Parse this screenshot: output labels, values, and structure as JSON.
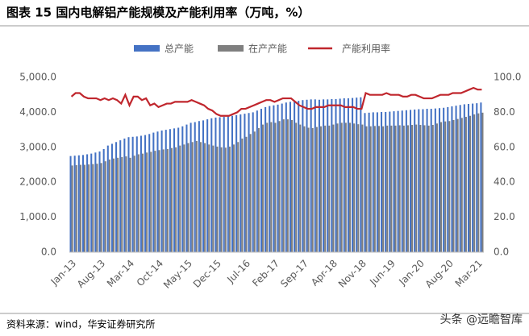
{
  "chart_data": {
    "type": "bar",
    "title": "图表 15 国内电解铝产能规模及产能利用率（万吨，%）",
    "source": "资料来源：wind，华安证券研究所",
    "watermark": "头条 @远瞻智库",
    "categories": [
      "Jan-13",
      null,
      null,
      null,
      null,
      null,
      null,
      "Aug-13",
      null,
      null,
      null,
      null,
      null,
      null,
      "Mar-14",
      null,
      null,
      null,
      null,
      null,
      null,
      "Oct-14",
      null,
      null,
      null,
      null,
      null,
      null,
      "May-15",
      null,
      null,
      null,
      null,
      null,
      null,
      "Dec-15",
      null,
      null,
      null,
      null,
      null,
      null,
      "Jul-16",
      null,
      null,
      null,
      null,
      null,
      null,
      "Feb-17",
      null,
      null,
      null,
      null,
      null,
      null,
      "Sep-17",
      null,
      null,
      null,
      null,
      null,
      null,
      "Apr-18",
      null,
      null,
      null,
      null,
      null,
      null,
      "Nov-18",
      null,
      null,
      null,
      null,
      null,
      null,
      "Jun-19",
      null,
      null,
      null,
      null,
      null,
      null,
      "Jan-20",
      null,
      null,
      null,
      null,
      null,
      null,
      "Aug-20",
      null,
      null,
      null,
      null,
      null,
      null,
      "Mar-21",
      null
    ],
    "series": [
      {
        "name": "总产能",
        "type": "bar",
        "color": "#4472c4",
        "values": [
          2750,
          2760,
          2770,
          2780,
          2800,
          2820,
          2850,
          2880,
          2950,
          3050,
          3100,
          3150,
          3200,
          3250,
          3290,
          3300,
          3310,
          3330,
          3350,
          3380,
          3420,
          3450,
          3480,
          3500,
          3520,
          3540,
          3560,
          3600,
          3650,
          3700,
          3720,
          3750,
          3770,
          3800,
          3830,
          3850,
          3860,
          3870,
          3880,
          3900,
          3920,
          3940,
          3960,
          3980,
          4000,
          4050,
          4100,
          4150,
          4180,
          4200,
          4220,
          4250,
          4280,
          4300,
          4320,
          4330,
          4350,
          4360,
          4370,
          4370,
          4360,
          4370,
          4370,
          4380,
          4380,
          4390,
          4400,
          4400,
          4410,
          4420,
          4430,
          3980,
          3990,
          4000,
          4000,
          4010,
          4010,
          4020,
          4030,
          4040,
          4050,
          4060,
          4070,
          4080,
          4090,
          4090,
          4100,
          4100,
          4110,
          4120,
          4130,
          4150,
          4170,
          4190,
          4210,
          4230,
          4240,
          4250,
          4260,
          4280
        ]
      },
      {
        "name": "在产产能",
        "type": "bar",
        "color": "#7f7f7f",
        "values": [
          2480,
          2490,
          2500,
          2500,
          2510,
          2520,
          2530,
          2550,
          2600,
          2650,
          2680,
          2700,
          2720,
          2740,
          2700,
          2760,
          2800,
          2820,
          2850,
          2870,
          2900,
          2920,
          2940,
          2950,
          2980,
          3000,
          3050,
          3080,
          3120,
          3150,
          3180,
          3150,
          3120,
          3080,
          3050,
          3020,
          3000,
          2990,
          3020,
          3080,
          3150,
          3250,
          3300,
          3380,
          3450,
          3550,
          3650,
          3700,
          3720,
          3700,
          3750,
          3800,
          3800,
          3780,
          3700,
          3650,
          3600,
          3560,
          3550,
          3580,
          3600,
          3620,
          3620,
          3650,
          3680,
          3700,
          3700,
          3700,
          3680,
          3660,
          3650,
          3600,
          3600,
          3610,
          3610,
          3600,
          3620,
          3620,
          3620,
          3630,
          3620,
          3630,
          3640,
          3650,
          3640,
          3630,
          3620,
          3640,
          3680,
          3720,
          3740,
          3750,
          3780,
          3810,
          3840,
          3870,
          3900,
          3940,
          3970,
          3990
        ]
      },
      {
        "name": "产能利用率",
        "type": "line",
        "axis": "y2",
        "color": "#c0262d",
        "values": [
          89,
          91,
          91,
          89,
          88,
          88,
          88,
          87,
          88,
          87,
          88,
          87,
          85,
          90,
          84,
          89,
          89,
          87,
          88,
          84,
          85,
          83,
          84,
          85,
          85,
          86,
          86,
          86,
          86,
          87,
          86,
          85,
          84,
          82,
          81,
          79,
          78,
          78,
          78,
          79,
          80,
          82,
          82,
          83,
          84,
          85,
          86,
          87,
          87,
          86,
          87,
          88,
          88,
          88,
          86,
          84,
          83,
          82,
          82,
          83,
          83,
          83,
          84,
          84,
          84,
          84,
          83,
          83,
          83,
          82,
          82,
          91,
          90,
          90,
          90,
          90,
          91,
          90,
          90,
          90,
          89,
          89,
          90,
          90,
          89,
          88,
          88,
          88,
          89,
          90,
          90,
          90,
          91,
          91,
          91,
          92,
          93,
          94,
          93,
          93
        ]
      }
    ],
    "ylim": [
      0,
      5000
    ],
    "yticks": [
      {
        "value": 0,
        "label": "0.0"
      },
      {
        "value": 1000,
        "label": "1,000.0"
      },
      {
        "value": 2000,
        "label": "2,000.0"
      },
      {
        "value": 3000,
        "label": "3,000.0"
      },
      {
        "value": 4000,
        "label": "4,000.0"
      },
      {
        "value": 5000,
        "label": "5,000.0"
      }
    ],
    "y2lim": [
      0,
      100
    ],
    "y2ticks": [
      {
        "value": 0,
        "label": "0.0"
      },
      {
        "value": 20,
        "label": "20.0"
      },
      {
        "value": 40,
        "label": "40.0"
      },
      {
        "value": 60,
        "label": "60.0"
      },
      {
        "value": 80,
        "label": "80.0"
      },
      {
        "value": 100,
        "label": "100.0"
      }
    ],
    "grid": false
  }
}
